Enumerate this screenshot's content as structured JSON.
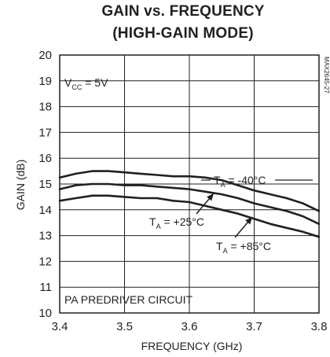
{
  "title_line1": "GAIN vs. FREQUENCY",
  "title_line2": "(HIGH-GAIN MODE)",
  "part_number": "MAX2645-27",
  "vcc_label": {
    "main": "V",
    "sub": "CC",
    "rest": " = 5V"
  },
  "circuit_label": "PA PREDRIVER CIRCUIT",
  "chart_data": {
    "type": "line",
    "xlabel": "FREQUENCY (GHz)",
    "ylabel": "GAIN (dB)",
    "xlim": [
      3.4,
      3.8
    ],
    "ylim": [
      10,
      20
    ],
    "x_ticks": [
      "3.4",
      "3.5",
      "3.6",
      "3.7",
      "3.8"
    ],
    "y_ticks": [
      "10",
      "11",
      "12",
      "13",
      "14",
      "15",
      "16",
      "17",
      "18",
      "19",
      "20"
    ],
    "grid": true,
    "series": [
      {
        "name": "TA = -40°C",
        "label": {
          "main": "T",
          "sub": "A",
          "rest": " = -40°C"
        },
        "x": [
          3.4,
          3.425,
          3.45,
          3.475,
          3.5,
          3.525,
          3.55,
          3.575,
          3.6,
          3.625,
          3.65,
          3.675,
          3.7,
          3.725,
          3.75,
          3.775,
          3.8
        ],
        "values": [
          15.25,
          15.4,
          15.5,
          15.5,
          15.45,
          15.4,
          15.35,
          15.3,
          15.3,
          15.25,
          15.15,
          14.95,
          14.75,
          14.6,
          14.45,
          14.25,
          13.95
        ]
      },
      {
        "name": "TA = +25°C",
        "label": {
          "main": "T",
          "sub": "A",
          "rest": " = +25°C"
        },
        "x": [
          3.4,
          3.425,
          3.45,
          3.475,
          3.5,
          3.525,
          3.55,
          3.575,
          3.6,
          3.625,
          3.65,
          3.675,
          3.7,
          3.725,
          3.75,
          3.775,
          3.8
        ],
        "values": [
          14.8,
          14.95,
          15.0,
          15.0,
          14.95,
          14.95,
          14.9,
          14.85,
          14.8,
          14.7,
          14.6,
          14.45,
          14.25,
          14.1,
          13.95,
          13.75,
          13.45
        ]
      },
      {
        "name": "TA = +85°C",
        "label": {
          "main": "T",
          "sub": "A",
          "rest": " = +85°C"
        },
        "x": [
          3.4,
          3.425,
          3.45,
          3.475,
          3.5,
          3.525,
          3.55,
          3.575,
          3.6,
          3.625,
          3.65,
          3.675,
          3.7,
          3.725,
          3.75,
          3.775,
          3.8
        ],
        "values": [
          14.35,
          14.45,
          14.55,
          14.55,
          14.5,
          14.45,
          14.45,
          14.35,
          14.3,
          14.15,
          14.0,
          13.85,
          13.65,
          13.45,
          13.3,
          13.15,
          12.95
        ]
      }
    ]
  }
}
